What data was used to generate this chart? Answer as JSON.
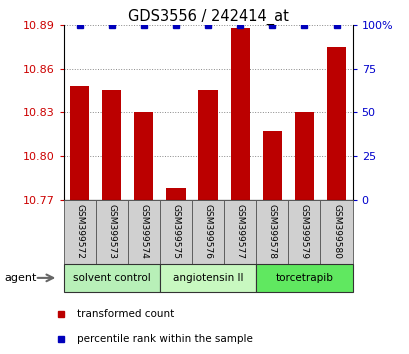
{
  "title": "GDS3556 / 242414_at",
  "samples": [
    "GSM399572",
    "GSM399573",
    "GSM399574",
    "GSM399575",
    "GSM399576",
    "GSM399577",
    "GSM399578",
    "GSM399579",
    "GSM399580"
  ],
  "red_values": [
    10.848,
    10.845,
    10.83,
    10.778,
    10.845,
    10.888,
    10.817,
    10.83,
    10.875
  ],
  "blue_values": [
    100,
    100,
    100,
    100,
    100,
    100,
    100,
    100,
    100
  ],
  "ylim_left": [
    10.77,
    10.89
  ],
  "ylim_right": [
    0,
    100
  ],
  "yticks_left": [
    10.77,
    10.8,
    10.83,
    10.86,
    10.89
  ],
  "yticks_right": [
    0,
    25,
    50,
    75,
    100
  ],
  "groups": [
    {
      "label": "solvent control",
      "indices": [
        0,
        1,
        2
      ],
      "color": "#b8f0b8"
    },
    {
      "label": "angiotensin II",
      "indices": [
        3,
        4,
        5
      ],
      "color": "#c8f8c0"
    },
    {
      "label": "torcetrapib",
      "indices": [
        6,
        7,
        8
      ],
      "color": "#60e860"
    }
  ],
  "agent_label": "agent",
  "bar_color": "#bb0000",
  "dot_color": "#0000bb",
  "bar_width": 0.6,
  "sample_box_color": "#d0d0d0",
  "grid_color": "#888888",
  "tick_label_color_left": "#cc0000",
  "tick_label_color_right": "#0000cc",
  "legend_items": [
    "transformed count",
    "percentile rank within the sample"
  ]
}
